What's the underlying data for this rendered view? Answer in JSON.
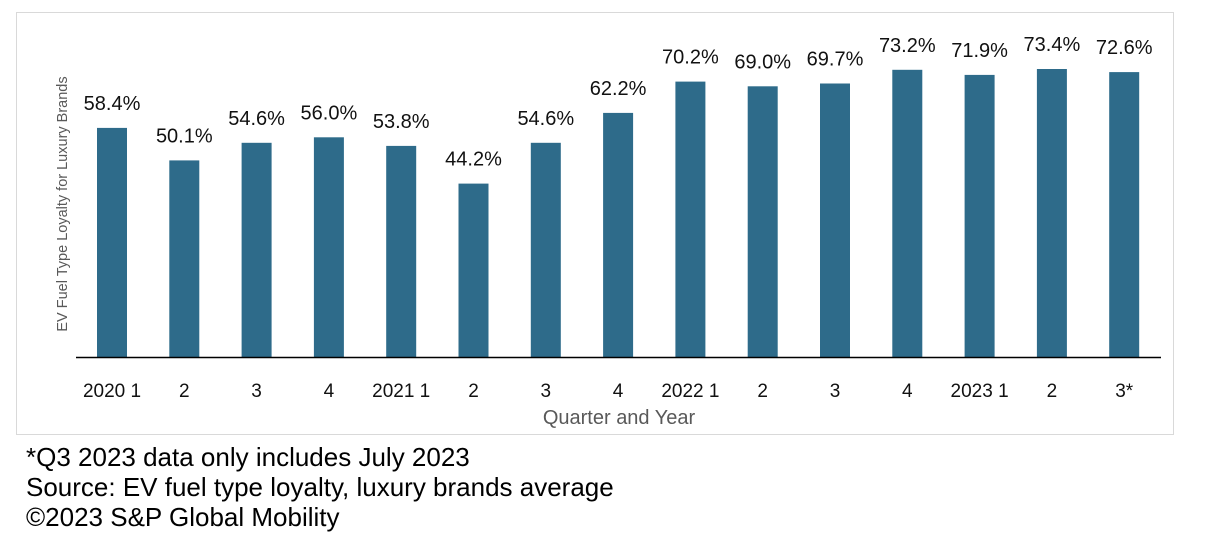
{
  "chart_data": {
    "type": "bar",
    "categories": [
      "2020 1",
      "2",
      "3",
      "4",
      "2021 1",
      "2",
      "3",
      "4",
      "2022 1",
      "2",
      "3",
      "4",
      "2023 1",
      "2",
      "3*"
    ],
    "values": [
      58.4,
      50.1,
      54.6,
      56.0,
      53.8,
      44.2,
      54.6,
      62.2,
      70.2,
      69.0,
      69.7,
      73.2,
      71.9,
      73.4,
      72.6
    ],
    "value_labels": [
      "58.4%",
      "50.1%",
      "54.6%",
      "56.0%",
      "53.8%",
      "44.2%",
      "54.6%",
      "62.2%",
      "70.2%",
      "69.0%",
      "69.7%",
      "73.2%",
      "71.9%",
      "73.4%",
      "72.6%"
    ],
    "xlabel": "Quarter and Year",
    "ylabel": "EV Fuel Type Loyalty for Luxury Brands",
    "ylim": [
      0,
      73.4
    ],
    "grid": false,
    "bar_color": "#2e6b8a"
  },
  "footnotes": {
    "note": "*Q3 2023 data only includes July 2023",
    "source": "Source: EV fuel type loyalty, luxury brands average",
    "copyright": "©2023 S&P Global Mobility"
  }
}
